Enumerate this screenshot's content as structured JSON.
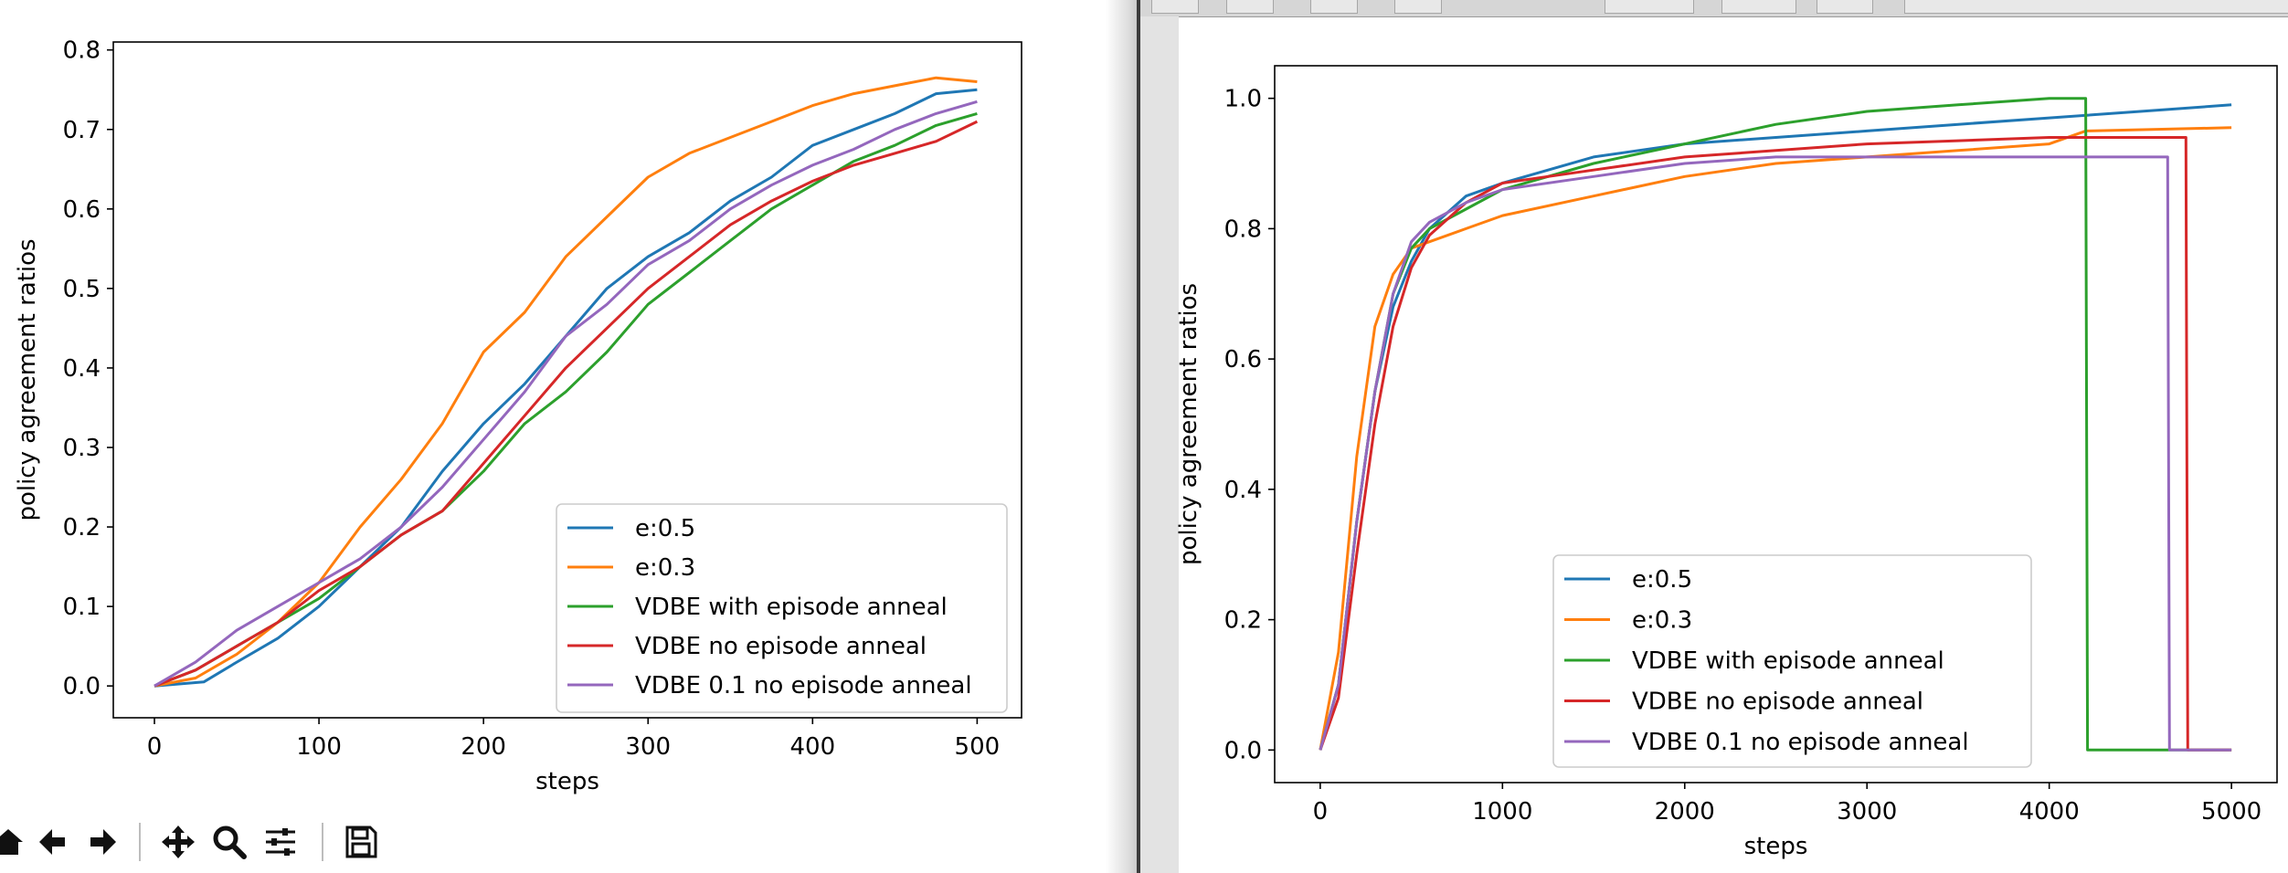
{
  "colors": {
    "e:0.5": "#1f77b4",
    "e:0.3": "#ff7f0e",
    "VDBE with episode anneal": "#2ca02c",
    "VDBE no episode anneal": "#d62728",
    "VDBE 0.1 no episode anneal": "#9467bd"
  },
  "toolbar": {
    "icons": [
      "home-icon",
      "back-arrow-icon",
      "forward-arrow-icon",
      "pan-icon",
      "zoom-icon",
      "configure-subplots-icon",
      "save-icon"
    ]
  },
  "chart_data": [
    {
      "type": "line",
      "title": "",
      "xlabel": "steps",
      "ylabel": "policy agreement ratios",
      "xlim": [
        -25,
        527
      ],
      "ylim": [
        -0.04,
        0.81
      ],
      "xticks": [
        0,
        100,
        200,
        300,
        400,
        500
      ],
      "xtick_labels": [
        "0",
        "100",
        "200",
        "300",
        "400",
        "500"
      ],
      "yticks": [
        0.0,
        0.1,
        0.2,
        0.3,
        0.4,
        0.5,
        0.6,
        0.7,
        0.8
      ],
      "ytick_labels": [
        "0.0",
        "0.1",
        "0.2",
        "0.3",
        "0.4",
        "0.5",
        "0.6",
        "0.7",
        "0.8"
      ],
      "legend": "lower-right",
      "grid": false,
      "series": [
        {
          "name": "e:0.5",
          "x": [
            0,
            30,
            50,
            75,
            100,
            125,
            150,
            175,
            200,
            225,
            250,
            275,
            300,
            325,
            350,
            375,
            400,
            425,
            450,
            475,
            500
          ],
          "y": [
            0.0,
            0.005,
            0.03,
            0.06,
            0.1,
            0.15,
            0.2,
            0.27,
            0.33,
            0.38,
            0.44,
            0.5,
            0.54,
            0.57,
            0.61,
            0.64,
            0.68,
            0.7,
            0.72,
            0.745,
            0.75
          ]
        },
        {
          "name": "e:0.3",
          "x": [
            0,
            25,
            50,
            75,
            100,
            125,
            150,
            175,
            200,
            225,
            250,
            275,
            300,
            325,
            350,
            375,
            400,
            425,
            450,
            475,
            500
          ],
          "y": [
            0.0,
            0.01,
            0.04,
            0.08,
            0.13,
            0.2,
            0.26,
            0.33,
            0.42,
            0.47,
            0.54,
            0.59,
            0.64,
            0.67,
            0.69,
            0.71,
            0.73,
            0.745,
            0.755,
            0.765,
            0.76
          ]
        },
        {
          "name": "VDBE with episode anneal",
          "x": [
            0,
            25,
            50,
            75,
            100,
            125,
            150,
            175,
            200,
            225,
            250,
            275,
            300,
            325,
            350,
            375,
            400,
            425,
            450,
            475,
            500
          ],
          "y": [
            0.0,
            0.02,
            0.05,
            0.08,
            0.11,
            0.15,
            0.19,
            0.22,
            0.27,
            0.33,
            0.37,
            0.42,
            0.48,
            0.52,
            0.56,
            0.6,
            0.63,
            0.66,
            0.68,
            0.705,
            0.72
          ]
        },
        {
          "name": "VDBE no episode anneal",
          "x": [
            0,
            25,
            50,
            75,
            100,
            125,
            150,
            175,
            200,
            225,
            250,
            275,
            300,
            325,
            350,
            375,
            400,
            425,
            450,
            475,
            500
          ],
          "y": [
            0.0,
            0.02,
            0.05,
            0.08,
            0.12,
            0.15,
            0.19,
            0.22,
            0.28,
            0.34,
            0.4,
            0.45,
            0.5,
            0.54,
            0.58,
            0.61,
            0.635,
            0.655,
            0.67,
            0.685,
            0.71
          ]
        },
        {
          "name": "VDBE 0.1 no episode anneal",
          "x": [
            0,
            25,
            50,
            75,
            100,
            125,
            150,
            175,
            200,
            225,
            250,
            275,
            300,
            325,
            350,
            375,
            400,
            425,
            450,
            475,
            500
          ],
          "y": [
            0.0,
            0.03,
            0.07,
            0.1,
            0.13,
            0.16,
            0.2,
            0.25,
            0.31,
            0.37,
            0.44,
            0.48,
            0.53,
            0.56,
            0.6,
            0.63,
            0.655,
            0.675,
            0.7,
            0.72,
            0.735
          ]
        }
      ]
    },
    {
      "type": "line",
      "title": "",
      "xlabel": "steps",
      "ylabel": "policy agreement ratios",
      "xlim": [
        -250,
        5250
      ],
      "ylim": [
        -0.05,
        1.05
      ],
      "xticks": [
        0,
        1000,
        2000,
        3000,
        4000,
        5000
      ],
      "xtick_labels": [
        "0",
        "1000",
        "2000",
        "3000",
        "4000",
        "5000"
      ],
      "yticks": [
        0.0,
        0.2,
        0.4,
        0.6,
        0.8,
        1.0
      ],
      "ytick_labels": [
        "0.0",
        "0.2",
        "0.4",
        "0.6",
        "0.8",
        "1.0"
      ],
      "legend": "lower-center",
      "grid": false,
      "series": [
        {
          "name": "e:0.5",
          "x": [
            0,
            100,
            200,
            300,
            400,
            500,
            600,
            800,
            1000,
            1250,
            1500,
            2000,
            2500,
            3000,
            3500,
            4000,
            4500,
            5000
          ],
          "y": [
            0.0,
            0.1,
            0.35,
            0.55,
            0.68,
            0.75,
            0.8,
            0.85,
            0.87,
            0.89,
            0.91,
            0.93,
            0.94,
            0.95,
            0.96,
            0.97,
            0.98,
            0.99
          ]
        },
        {
          "name": "e:0.3",
          "x": [
            0,
            100,
            200,
            300,
            400,
            500,
            600,
            800,
            1000,
            1500,
            2000,
            2500,
            3000,
            3500,
            4000,
            4200,
            5000
          ],
          "y": [
            0.0,
            0.15,
            0.45,
            0.65,
            0.73,
            0.77,
            0.78,
            0.8,
            0.82,
            0.85,
            0.88,
            0.9,
            0.91,
            0.92,
            0.93,
            0.95,
            0.955
          ]
        },
        {
          "name": "VDBE with episode anneal",
          "x": [
            0,
            100,
            200,
            300,
            400,
            500,
            600,
            800,
            1000,
            1500,
            2000,
            2500,
            3000,
            3500,
            4000,
            4200,
            4210,
            5000
          ],
          "y": [
            0.0,
            0.1,
            0.35,
            0.55,
            0.7,
            0.77,
            0.8,
            0.83,
            0.86,
            0.9,
            0.93,
            0.96,
            0.98,
            0.99,
            1.0,
            1.0,
            0.0,
            0.0
          ]
        },
        {
          "name": "VDBE no episode anneal",
          "x": [
            0,
            100,
            200,
            300,
            400,
            500,
            600,
            800,
            1000,
            1500,
            2000,
            2500,
            3000,
            3500,
            4000,
            4750,
            4760,
            5000
          ],
          "y": [
            0.0,
            0.08,
            0.3,
            0.5,
            0.65,
            0.74,
            0.79,
            0.84,
            0.87,
            0.89,
            0.91,
            0.92,
            0.93,
            0.935,
            0.94,
            0.94,
            0.0,
            0.0
          ]
        },
        {
          "name": "VDBE 0.1 no episode anneal",
          "x": [
            0,
            100,
            200,
            300,
            400,
            500,
            600,
            800,
            1000,
            1500,
            2000,
            2500,
            3000,
            3500,
            4000,
            4650,
            4660,
            5000
          ],
          "y": [
            0.0,
            0.1,
            0.35,
            0.55,
            0.7,
            0.78,
            0.81,
            0.84,
            0.86,
            0.88,
            0.9,
            0.91,
            0.91,
            0.91,
            0.91,
            0.91,
            0.0,
            0.0
          ]
        }
      ]
    }
  ]
}
